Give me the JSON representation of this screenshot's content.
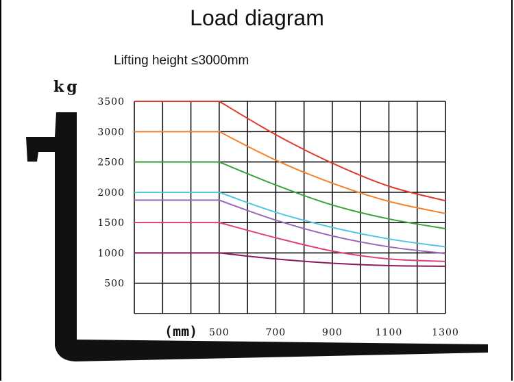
{
  "header": {
    "title": "Load diagram",
    "subtitle": "Lifting height ≤3000mm"
  },
  "chart_data": {
    "type": "line",
    "title": "Load diagram",
    "subtitle": "Lifting height ≤3000mm",
    "ylabel": "kg",
    "xlabel": "(mm)",
    "xlim": [
      200,
      1300
    ],
    "ylim": [
      0,
      3500
    ],
    "x_ticks": [
      "500",
      "700",
      "900",
      "1100",
      "1300"
    ],
    "y_ticks": [
      "3500",
      "3000",
      "2500",
      "2000",
      "1500",
      "1000",
      "500"
    ],
    "grid": true,
    "series": [
      {
        "color": "#e03a2a",
        "x": [
          200,
          500,
          700,
          900,
          1100,
          1300
        ],
        "y": [
          3500,
          3500,
          2950,
          2480,
          2100,
          1860
        ]
      },
      {
        "color": "#f5812a",
        "x": [
          200,
          500,
          700,
          900,
          1100,
          1300
        ],
        "y": [
          3000,
          3000,
          2530,
          2150,
          1850,
          1650
        ]
      },
      {
        "color": "#3aa337",
        "x": [
          200,
          500,
          700,
          900,
          1100,
          1300
        ],
        "y": [
          2500,
          2500,
          2120,
          1790,
          1560,
          1400
        ]
      },
      {
        "color": "#4fc6e0",
        "x": [
          200,
          500,
          700,
          900,
          1100,
          1300
        ],
        "y": [
          2000,
          2000,
          1670,
          1420,
          1230,
          1100
        ]
      },
      {
        "color": "#9a66b8",
        "x": [
          200,
          500,
          700,
          900,
          1100,
          1300
        ],
        "y": [
          1870,
          1870,
          1540,
          1280,
          1100,
          990
        ]
      },
      {
        "color": "#e04080",
        "x": [
          200,
          500,
          700,
          900,
          1100,
          1300
        ],
        "y": [
          1500,
          1500,
          1250,
          1030,
          900,
          860
        ]
      },
      {
        "color": "#8a1a5a",
        "x": [
          200,
          500,
          700,
          900,
          1100,
          1300
        ],
        "y": [
          1000,
          1000,
          900,
          830,
          790,
          780
        ]
      }
    ]
  }
}
